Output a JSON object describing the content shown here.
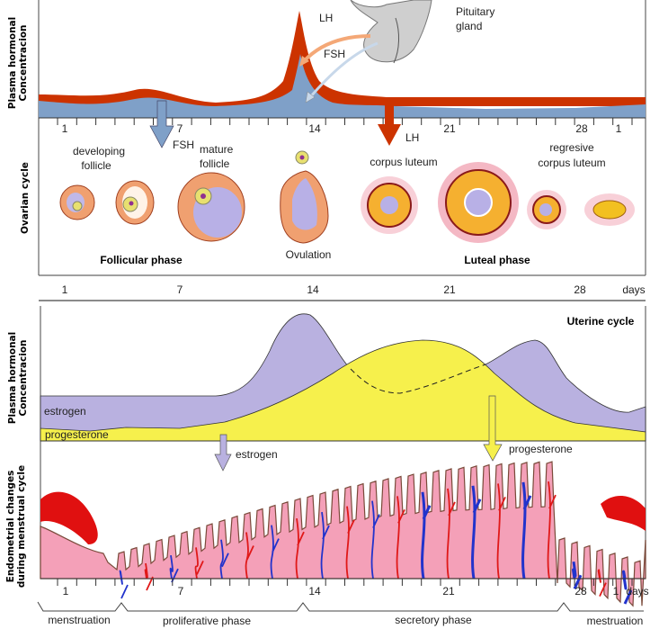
{
  "axis_labels": {
    "plasma_top": [
      "Plasma hormonal",
      "Concentracion"
    ],
    "ovarian": "Ovarian cycle",
    "plasma_bottom": [
      "Plasma hormonal",
      "Concentracion"
    ],
    "endometrial": [
      "Endometrial changes",
      "during menstrual cycle"
    ]
  },
  "pituitary": {
    "label": [
      "Pituitary",
      "gland"
    ],
    "lh": "LH",
    "fsh": "FSH"
  },
  "top_days": [
    "1",
    "7",
    "14",
    "21",
    "28",
    "1"
  ],
  "arrows": {
    "fsh": "FSH",
    "lh": "LH"
  },
  "ovarian": {
    "developing": [
      "developing",
      "follicle"
    ],
    "mature": [
      "mature",
      "follicle"
    ],
    "corpus_luteum": "corpus luteum",
    "regressive": [
      "regresive",
      "corpus luteum"
    ],
    "follicular_phase": "Follicular phase",
    "ovulation": "Ovulation",
    "luteal_phase": "Luteal phase"
  },
  "mid_days": [
    "1",
    "7",
    "14",
    "21",
    "28",
    "days"
  ],
  "uterine": {
    "title": "Uterine cycle",
    "estrogen": "estrogen",
    "progesterone": "progesterone",
    "arrow_estrogen": "estrogen",
    "arrow_progesterone": "progesterone"
  },
  "bottom_days": [
    "1",
    "7",
    "14",
    "21",
    "28",
    "1",
    "days"
  ],
  "phases": [
    "menstruation",
    "proliferative phase",
    "secretory phase",
    "mestruation"
  ],
  "colors": {
    "lh": "#cc3300",
    "fsh": "#7f9fc9",
    "estrogen": "#b9b1e0",
    "progesterone": "#f6f04c",
    "endometrium": "#f4a0b8"
  }
}
